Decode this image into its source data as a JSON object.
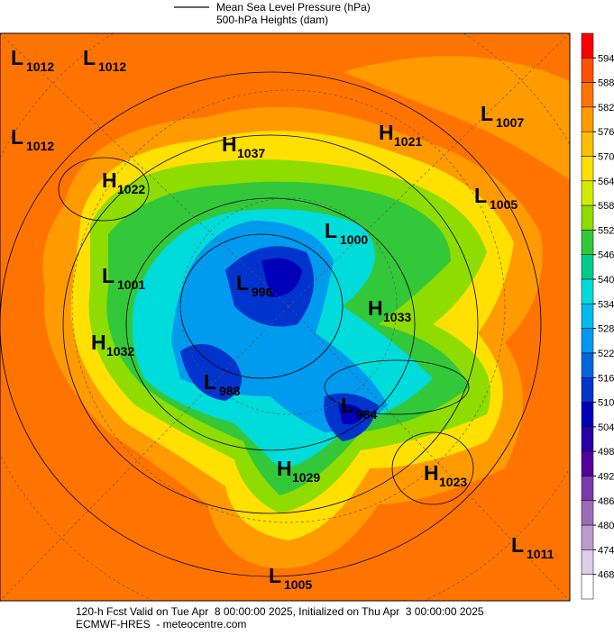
{
  "legend": {
    "line_label": "Mean Sea Level Pressure (hPa)",
    "fill_label": "500-hPa Heights (dam)"
  },
  "colorbar": {
    "ticks": [
      594,
      588,
      582,
      576,
      570,
      564,
      558,
      552,
      546,
      540,
      534,
      528,
      522,
      516,
      510,
      504,
      498,
      492,
      486,
      480,
      474,
      468
    ],
    "colors": [
      "#ff0000",
      "#ff5000",
      "#ff7400",
      "#ff9a00",
      "#ffbe00",
      "#ffe000",
      "#d2ec00",
      "#8fdc00",
      "#33c83a",
      "#00cc8a",
      "#00dcdc",
      "#00bcee",
      "#009aee",
      "#0068dc",
      "#0034cc",
      "#0000b8",
      "#2800a6",
      "#550098",
      "#7a3aaa",
      "#9c6cbc",
      "#bc9ccc",
      "#dccdea",
      "#ffffff"
    ]
  },
  "centers": [
    {
      "letter": "L",
      "value": 1012
    },
    {
      "letter": "L",
      "value": 1012
    },
    {
      "letter": "L",
      "value": 1012
    },
    {
      "letter": "H",
      "value": 1037
    },
    {
      "letter": "H",
      "value": 1021
    },
    {
      "letter": "L",
      "value": 1007
    },
    {
      "letter": "H",
      "value": 1022
    },
    {
      "letter": "L",
      "value": 1005
    },
    {
      "letter": "L",
      "value": 1000
    },
    {
      "letter": "L",
      "value": 1001
    },
    {
      "letter": "L",
      "value": 996
    },
    {
      "letter": "H",
      "value": 1033
    },
    {
      "letter": "H",
      "value": 1032
    },
    {
      "letter": "L",
      "value": 988
    },
    {
      "letter": "L",
      "value": 984
    },
    {
      "letter": "H",
      "value": 1029
    },
    {
      "letter": "H",
      "value": 1023
    },
    {
      "letter": "L",
      "value": 1011
    },
    {
      "letter": "L",
      "value": 1005
    }
  ],
  "footer": {
    "line1": "120-h Fcst Valid on Tue Apr  8 00:00:00 2025, Initialized on Thu Apr  3 00:00:00 2025",
    "line2": "ECMWF-HRES  - meteocentre.com"
  }
}
